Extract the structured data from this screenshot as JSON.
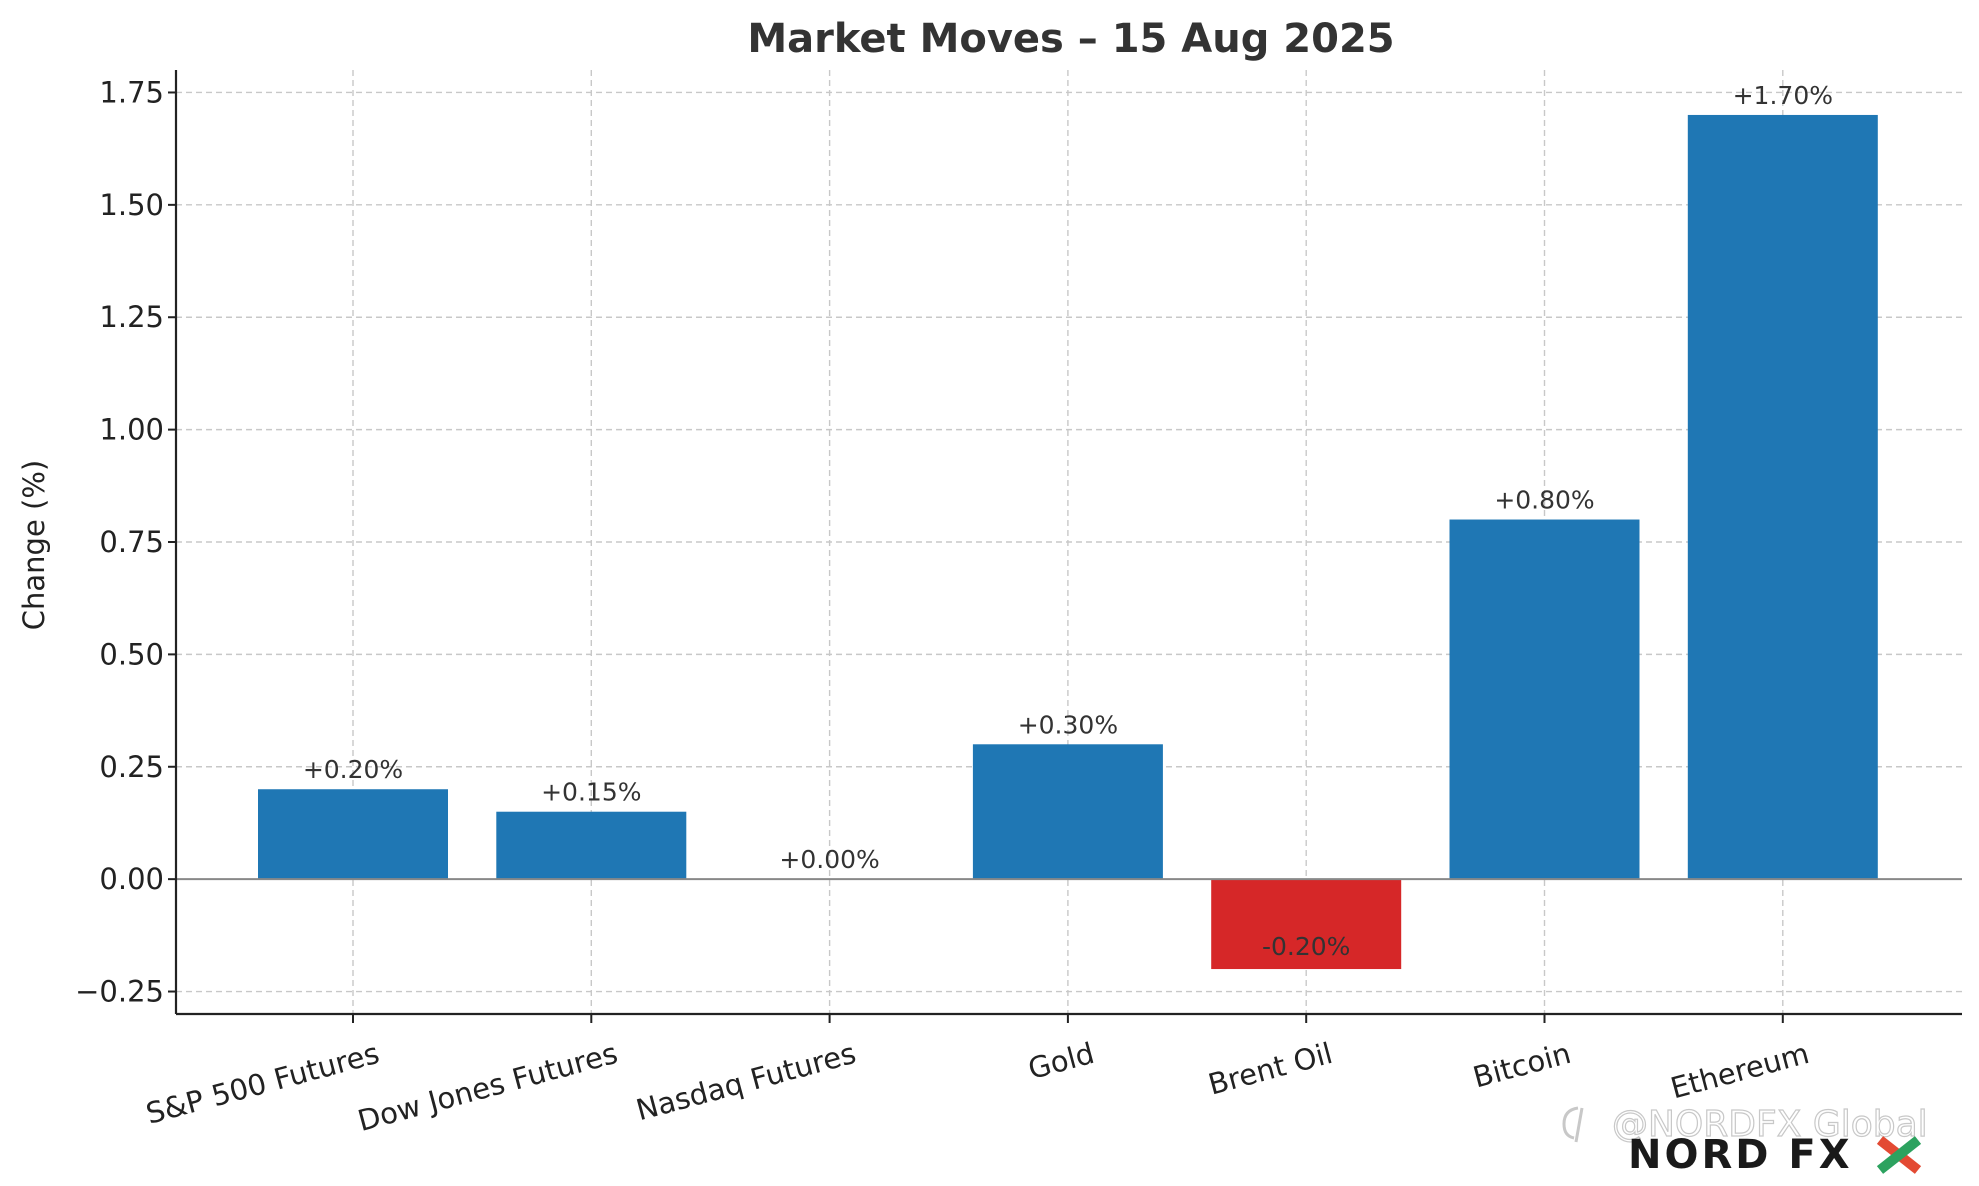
{
  "chart_data": {
    "type": "bar",
    "title": "Market Moves – 15 Aug 2025",
    "xlabel": "",
    "ylabel": "Change (%)",
    "categories": [
      "S&P 500 Futures",
      "Dow Jones Futures",
      "Nasdaq Futures",
      "Gold",
      "Brent Oil",
      "Bitcoin",
      "Ethereum"
    ],
    "values": [
      0.2,
      0.15,
      0.0,
      0.3,
      -0.2,
      0.8,
      1.7
    ],
    "data_labels": [
      "+0.20%",
      "+0.15%",
      "+0.00%",
      "+0.30%",
      "-0.20%",
      "+0.80%",
      "+1.70%"
    ],
    "ylim": [
      -0.3,
      1.8
    ],
    "yticks": [
      -0.25,
      0.0,
      0.25,
      0.5,
      0.75,
      1.0,
      1.25,
      1.5,
      1.75
    ],
    "ytick_labels": [
      "−0.25",
      "0.00",
      "0.25",
      "0.50",
      "0.75",
      "1.00",
      "1.25",
      "1.50",
      "1.75"
    ],
    "grid": true,
    "colors": {
      "positive": "#1f77b4",
      "negative": "#d62728",
      "zero_line": "#888888",
      "grid": "#c8c8c8"
    }
  },
  "watermark": {
    "text": "@NORDFX Global"
  },
  "logo": {
    "text": "NORD FX"
  }
}
